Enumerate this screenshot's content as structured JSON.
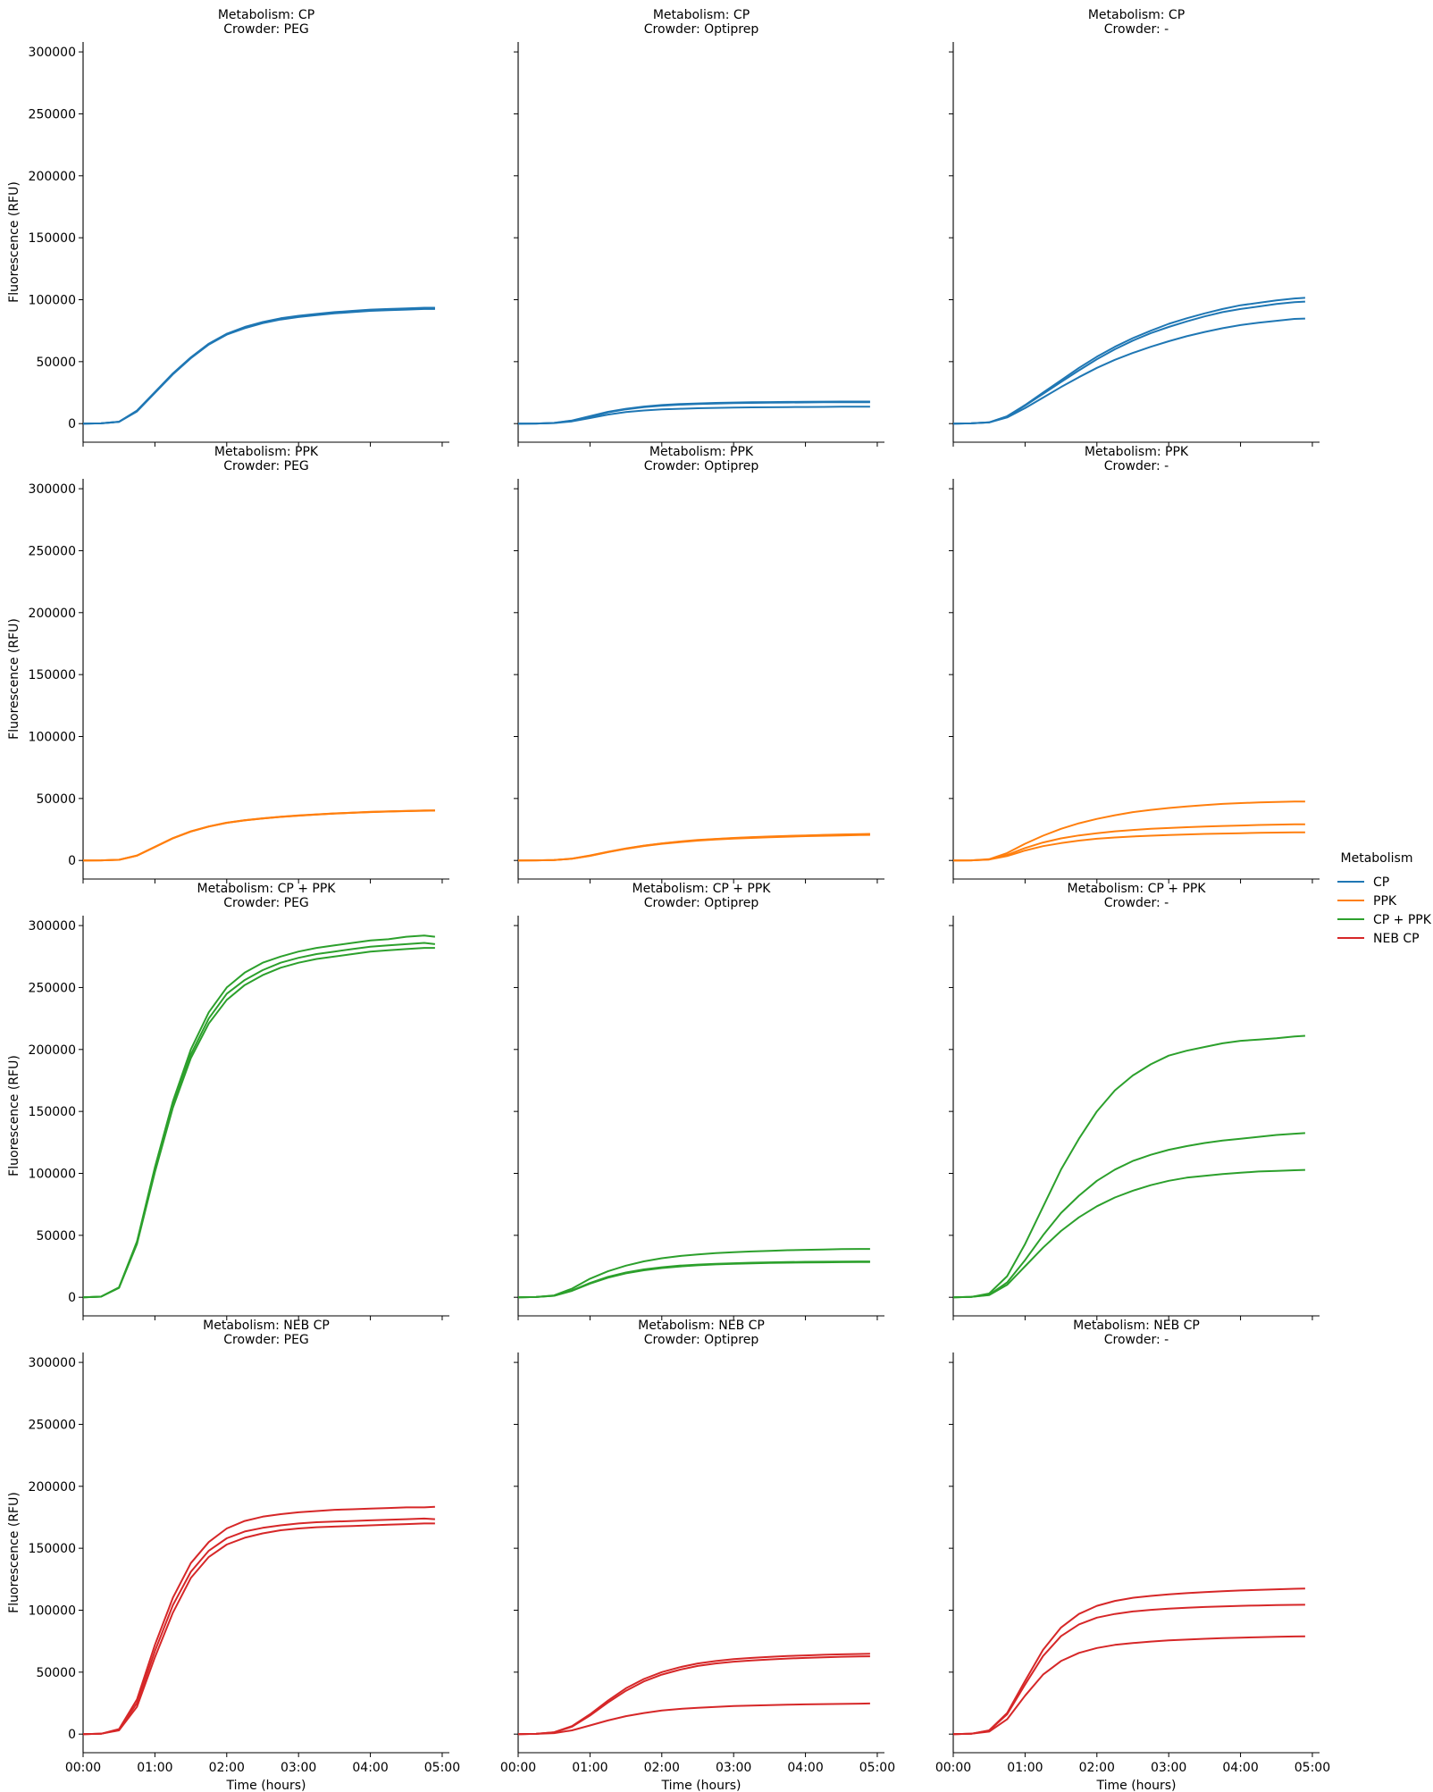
{
  "colors": {
    "CP": "#1f77b4",
    "PPK": "#ff7f0e",
    "CP + PPK": "#2ca02c",
    "NEB CP": "#d62728"
  },
  "chart_data": {
    "type": "line",
    "facet_rows": [
      "CP",
      "PPK",
      "CP + PPK",
      "NEB CP"
    ],
    "facet_cols": [
      "PEG",
      "Optiprep",
      "-"
    ],
    "facet_title_row_prefix": "Metabolism: ",
    "facet_title_col_prefix": "Crowder: ",
    "xlabel": "Time (hours)",
    "ylabel": "Fluorescence (RFU)",
    "xlim": [
      0,
      5.1
    ],
    "ylim": [
      -15000,
      308000
    ],
    "x_ticks": [
      0,
      1,
      2,
      3,
      4,
      5
    ],
    "x_tick_labels": [
      "00:00",
      "01:00",
      "02:00",
      "03:00",
      "04:00",
      "05:00"
    ],
    "y_ticks": [
      0,
      50000,
      100000,
      150000,
      200000,
      250000,
      300000
    ],
    "y_tick_labels": [
      "0",
      "50000",
      "100000",
      "150000",
      "200000",
      "250000",
      "300000"
    ],
    "legend": {
      "title": "Metabolism",
      "placement": "right",
      "entries": [
        "CP",
        "PPK",
        "CP + PPK",
        "NEB CP"
      ]
    },
    "x_hours": [
      0,
      0.25,
      0.5,
      0.75,
      1.0,
      1.25,
      1.5,
      1.75,
      2.0,
      2.25,
      2.5,
      2.75,
      3.0,
      3.25,
      3.5,
      3.75,
      4.0,
      4.25,
      4.5,
      4.75,
      4.9
    ],
    "panels": [
      {
        "metabolism": "CP",
        "crowder": "PEG",
        "replicates": [
          [
            0,
            200,
            1500,
            10000,
            25000,
            40000,
            53000,
            64000,
            72000,
            77500,
            81500,
            84500,
            86500,
            88000,
            89500,
            90500,
            91500,
            92000,
            92500,
            93000,
            93000
          ],
          [
            0,
            200,
            1500,
            10500,
            25500,
            40500,
            53500,
            64500,
            72500,
            78000,
            82000,
            85000,
            87000,
            88500,
            90000,
            91000,
            92000,
            92500,
            93000,
            93500,
            93500
          ],
          [
            0,
            200,
            1400,
            9800,
            24800,
            39800,
            52800,
            63800,
            71800,
            77000,
            81000,
            84000,
            86000,
            87500,
            89000,
            90000,
            91000,
            91500,
            92000,
            92500,
            92500
          ]
        ]
      },
      {
        "metabolism": "CP",
        "crowder": "Optiprep",
        "replicates": [
          [
            0,
            100,
            600,
            2500,
            6000,
            9500,
            12000,
            13800,
            15000,
            15800,
            16300,
            16700,
            17000,
            17200,
            17400,
            17500,
            17600,
            17700,
            17800,
            17800,
            17800
          ],
          [
            0,
            100,
            500,
            2300,
            5500,
            9000,
            11500,
            13300,
            14500,
            15300,
            15800,
            16200,
            16500,
            16700,
            16900,
            17000,
            17100,
            17200,
            17300,
            17300,
            17300
          ],
          [
            0,
            100,
            400,
            1800,
            4500,
            7300,
            9300,
            10600,
            11500,
            12000,
            12400,
            12700,
            12900,
            13100,
            13200,
            13300,
            13400,
            13500,
            13600,
            13600,
            13600
          ]
        ]
      },
      {
        "metabolism": "CP",
        "crowder": "-",
        "replicates": [
          [
            0,
            200,
            1000,
            6000,
            15000,
            25000,
            35000,
            45000,
            54000,
            62000,
            69000,
            75000,
            80500,
            85000,
            89000,
            92500,
            95500,
            97500,
            99500,
            101000,
            101500
          ],
          [
            0,
            200,
            1000,
            5800,
            14500,
            24000,
            33500,
            43000,
            52000,
            60000,
            67000,
            73000,
            78000,
            82500,
            86500,
            90000,
            92500,
            94500,
            96500,
            98000,
            98500
          ],
          [
            0,
            200,
            900,
            5000,
            12500,
            21000,
            29500,
            37500,
            45000,
            51500,
            57000,
            62000,
            66500,
            70500,
            74000,
            77000,
            79500,
            81500,
            83000,
            84500,
            84800
          ]
        ]
      },
      {
        "metabolism": "PPK",
        "crowder": "PEG",
        "replicates": [
          [
            0,
            100,
            500,
            4000,
            11000,
            18000,
            23500,
            27500,
            30500,
            32500,
            34000,
            35300,
            36300,
            37200,
            38000,
            38600,
            39200,
            39600,
            40000,
            40300,
            40400
          ],
          [
            0,
            100,
            500,
            3800,
            10800,
            17800,
            23300,
            27300,
            30300,
            32300,
            33800,
            35100,
            36100,
            37000,
            37800,
            38400,
            39000,
            39400,
            39800,
            40100,
            40200
          ],
          [
            0,
            100,
            500,
            3900,
            10900,
            17900,
            23400,
            27400,
            30400,
            32400,
            33900,
            35200,
            36200,
            37100,
            37900,
            38500,
            39100,
            39500,
            39900,
            40200,
            40300
          ]
        ]
      },
      {
        "metabolism": "PPK",
        "crowder": "Optiprep",
        "replicates": [
          [
            0,
            100,
            300,
            1500,
            4000,
            7000,
            9700,
            12000,
            13800,
            15300,
            16500,
            17400,
            18200,
            18800,
            19300,
            19800,
            20200,
            20600,
            21000,
            21300,
            21400
          ],
          [
            0,
            100,
            300,
            1400,
            3800,
            6800,
            9500,
            11800,
            13600,
            15100,
            16300,
            17200,
            18000,
            18600,
            19100,
            19600,
            20000,
            20400,
            20700,
            21000,
            21100
          ],
          [
            0,
            100,
            300,
            1400,
            3700,
            6700,
            9400,
            11600,
            13400,
            14800,
            16000,
            16900,
            17600,
            18200,
            18700,
            19200,
            19600,
            19900,
            20200,
            20500,
            20600
          ]
        ]
      },
      {
        "metabolism": "PPK",
        "crowder": "-",
        "replicates": [
          [
            0,
            100,
            1000,
            6000,
            13500,
            20000,
            25500,
            30000,
            33500,
            36500,
            39000,
            40800,
            42300,
            43600,
            44700,
            45600,
            46300,
            46800,
            47200,
            47500,
            47600
          ],
          [
            0,
            100,
            800,
            4500,
            10000,
            14500,
            17800,
            20200,
            22000,
            23500,
            24600,
            25500,
            26200,
            26800,
            27300,
            27800,
            28200,
            28600,
            28900,
            29100,
            29200
          ],
          [
            0,
            100,
            700,
            3500,
            8000,
            11500,
            14000,
            16000,
            17500,
            18500,
            19300,
            20000,
            20500,
            21000,
            21400,
            21700,
            22000,
            22300,
            22500,
            22700,
            22700
          ]
        ]
      },
      {
        "metabolism": "CP + PPK",
        "crowder": "PEG",
        "replicates": [
          [
            0,
            500,
            8000,
            45000,
            105000,
            158000,
            200000,
            230000,
            250000,
            262000,
            270000,
            275000,
            279000,
            282000,
            284000,
            286000,
            288000,
            289000,
            291000,
            292000,
            291000
          ],
          [
            0,
            500,
            7800,
            44000,
            103000,
            155000,
            196000,
            225000,
            245000,
            256000,
            264000,
            270000,
            274000,
            277000,
            279000,
            281000,
            283000,
            284000,
            285000,
            286000,
            285000
          ],
          [
            0,
            500,
            7600,
            43000,
            101000,
            153000,
            193000,
            221000,
            240000,
            252000,
            260000,
            266000,
            270000,
            273000,
            275000,
            277000,
            279000,
            280000,
            281000,
            282000,
            282000
          ]
        ]
      },
      {
        "metabolism": "CP + PPK",
        "crowder": "Optiprep",
        "replicates": [
          [
            0,
            200,
            1500,
            7000,
            15000,
            21000,
            25500,
            29000,
            31500,
            33300,
            34600,
            35600,
            36400,
            37000,
            37500,
            38000,
            38300,
            38600,
            38900,
            39000,
            39000
          ],
          [
            0,
            200,
            1200,
            5500,
            11500,
            16500,
            20000,
            22500,
            24200,
            25500,
            26400,
            27000,
            27500,
            27900,
            28200,
            28400,
            28600,
            28700,
            28800,
            28900,
            28900
          ],
          [
            0,
            200,
            1200,
            5200,
            11000,
            15800,
            19300,
            21800,
            23600,
            24900,
            25800,
            26500,
            27000,
            27400,
            27700,
            27900,
            28100,
            28200,
            28300,
            28400,
            28400
          ]
        ]
      },
      {
        "metabolism": "CP + PPK",
        "crowder": "-",
        "replicates": [
          [
            0,
            300,
            3000,
            17000,
            43000,
            73000,
            103000,
            128000,
            150000,
            167000,
            179000,
            188000,
            195000,
            199000,
            202000,
            205000,
            207000,
            208000,
            209000,
            210500,
            211000
          ],
          [
            0,
            300,
            2000,
            12000,
            30000,
            50000,
            68000,
            82000,
            94000,
            103000,
            110000,
            115000,
            119000,
            122000,
            124500,
            126500,
            128000,
            129500,
            131000,
            132000,
            132500
          ],
          [
            0,
            300,
            1800,
            10000,
            25000,
            40000,
            53500,
            64500,
            73500,
            80500,
            86000,
            90500,
            94000,
            96500,
            98000,
            99500,
            100500,
            101500,
            102000,
            102500,
            102800
          ]
        ]
      },
      {
        "metabolism": "NEB CP",
        "crowder": "PEG",
        "replicates": [
          [
            0,
            300,
            4000,
            28000,
            72000,
            110000,
            138000,
            155000,
            166000,
            172000,
            175500,
            177500,
            179000,
            180000,
            181000,
            181500,
            182000,
            182500,
            183000,
            183000,
            183500
          ],
          [
            0,
            300,
            3500,
            25000,
            67000,
            104000,
            131000,
            148000,
            158000,
            163500,
            166500,
            168500,
            170000,
            171000,
            171500,
            172000,
            172500,
            173000,
            173500,
            174000,
            173500
          ],
          [
            0,
            300,
            3000,
            22000,
            62000,
            98000,
            126000,
            143000,
            153000,
            158500,
            162000,
            164500,
            166000,
            167000,
            167500,
            168000,
            168500,
            169000,
            169500,
            170000,
            170000
          ]
        ]
      },
      {
        "metabolism": "NEB CP",
        "crowder": "Optiprep",
        "replicates": [
          [
            0,
            200,
            1500,
            6500,
            16000,
            27000,
            37000,
            44500,
            50000,
            54000,
            57000,
            59000,
            60500,
            61500,
            62300,
            63000,
            63500,
            64000,
            64400,
            64700,
            64800
          ],
          [
            0,
            200,
            1400,
            6000,
            15000,
            25500,
            35000,
            42500,
            48000,
            52000,
            55000,
            57000,
            58500,
            59500,
            60300,
            61000,
            61500,
            62000,
            62400,
            62700,
            62800
          ],
          [
            0,
            200,
            800,
            3000,
            7000,
            11000,
            14500,
            17000,
            19000,
            20300,
            21300,
            22000,
            22600,
            23000,
            23400,
            23700,
            24000,
            24200,
            24400,
            24600,
            24700
          ]
        ]
      },
      {
        "metabolism": "NEB CP",
        "crowder": "-",
        "replicates": [
          [
            0,
            300,
            3000,
            17000,
            43000,
            68000,
            86000,
            97000,
            103500,
            107500,
            110000,
            111500,
            112800,
            113800,
            114600,
            115300,
            115900,
            116400,
            116900,
            117300,
            117500
          ],
          [
            0,
            300,
            2800,
            16000,
            40000,
            63000,
            79000,
            88500,
            94000,
            97000,
            99000,
            100300,
            101300,
            102000,
            102600,
            103100,
            103500,
            103800,
            104100,
            104300,
            104400
          ],
          [
            0,
            300,
            2000,
            12000,
            31000,
            48000,
            59000,
            65500,
            69500,
            72000,
            73500,
            74700,
            75600,
            76300,
            76900,
            77400,
            77800,
            78200,
            78500,
            78800,
            78900
          ]
        ]
      }
    ]
  }
}
